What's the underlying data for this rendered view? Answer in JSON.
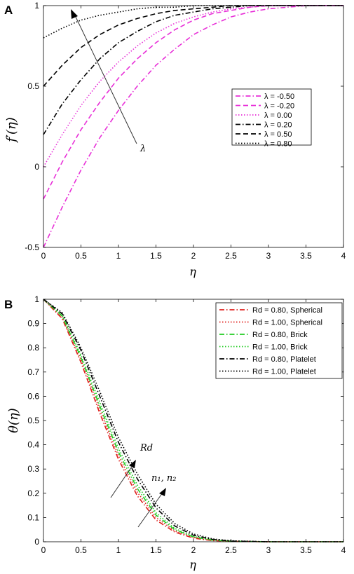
{
  "chart_data": [
    {
      "panel": "A",
      "type": "line",
      "xlabel": "η",
      "ylabel": "f′(η)",
      "xlim": [
        0,
        4
      ],
      "ylim": [
        -0.5,
        1
      ],
      "xticks": [
        "0",
        "0.5",
        "1",
        "1.5",
        "2",
        "2.5",
        "3",
        "3.5",
        "4"
      ],
      "yticks": [
        "-0.5",
        "0",
        "0.5",
        "1"
      ],
      "grid": false,
      "legend_position": "right",
      "annotation": "λ",
      "series": [
        {
          "name": "λ = -0.50",
          "color": "#e830d8",
          "dash": "dashdot",
          "x": [
            0,
            0.25,
            0.5,
            0.75,
            1,
            1.25,
            1.5,
            1.75,
            2,
            2.25,
            2.5,
            2.75,
            3,
            3.25,
            3.5,
            3.75,
            4
          ],
          "y": [
            -0.5,
            -0.25,
            -0.02,
            0.18,
            0.35,
            0.5,
            0.63,
            0.73,
            0.82,
            0.88,
            0.93,
            0.96,
            0.98,
            0.99,
            1.0,
            1.0,
            1.0
          ]
        },
        {
          "name": "λ = -0.20",
          "color": "#e830d8",
          "dash": "dashed",
          "x": [
            0,
            0.25,
            0.5,
            0.75,
            1,
            1.25,
            1.5,
            1.75,
            2,
            2.25,
            2.5,
            2.75,
            3,
            3.25,
            3.5,
            3.75,
            4
          ],
          "y": [
            -0.2,
            0.03,
            0.23,
            0.4,
            0.55,
            0.67,
            0.77,
            0.85,
            0.91,
            0.95,
            0.97,
            0.99,
            1.0,
            1.0,
            1.0,
            1.0,
            1.0
          ]
        },
        {
          "name": "λ = 0.00",
          "color": "#e830d8",
          "dash": "dotted",
          "x": [
            0,
            0.25,
            0.5,
            0.75,
            1,
            1.25,
            1.5,
            1.75,
            2,
            2.25,
            2.5,
            2.75,
            3,
            3.25,
            3.5,
            3.75,
            4
          ],
          "y": [
            0.0,
            0.2,
            0.38,
            0.53,
            0.65,
            0.75,
            0.83,
            0.89,
            0.93,
            0.96,
            0.98,
            0.99,
            1.0,
            1.0,
            1.0,
            1.0,
            1.0
          ]
        },
        {
          "name": "λ = 0.20",
          "color": "#000000",
          "dash": "dashdot",
          "x": [
            0,
            0.25,
            0.5,
            0.75,
            1,
            1.25,
            1.5,
            1.75,
            2,
            2.25,
            2.5,
            2.75,
            3,
            3.25,
            3.5,
            3.75,
            4
          ],
          "y": [
            0.2,
            0.39,
            0.54,
            0.67,
            0.77,
            0.84,
            0.9,
            0.94,
            0.96,
            0.98,
            0.99,
            1.0,
            1.0,
            1.0,
            1.0,
            1.0,
            1.0
          ]
        },
        {
          "name": "λ = 0.50",
          "color": "#000000",
          "dash": "dashed",
          "x": [
            0,
            0.25,
            0.5,
            0.75,
            1,
            1.25,
            1.5,
            1.75,
            2,
            2.25,
            2.5,
            2.75,
            3,
            3.25,
            3.5,
            3.75,
            4
          ],
          "y": [
            0.5,
            0.63,
            0.74,
            0.82,
            0.88,
            0.92,
            0.95,
            0.97,
            0.98,
            0.99,
            1.0,
            1.0,
            1.0,
            1.0,
            1.0,
            1.0,
            1.0
          ]
        },
        {
          "name": "λ = 0.80",
          "color": "#000000",
          "dash": "dotted",
          "x": [
            0,
            0.25,
            0.5,
            0.75,
            1,
            1.25,
            1.5,
            1.75,
            2,
            2.25,
            2.5,
            2.75,
            3,
            3.25,
            3.5,
            3.75,
            4
          ],
          "y": [
            0.8,
            0.86,
            0.91,
            0.94,
            0.96,
            0.98,
            0.99,
            0.99,
            1.0,
            1.0,
            1.0,
            1.0,
            1.0,
            1.0,
            1.0,
            1.0,
            1.0
          ]
        }
      ]
    },
    {
      "panel": "B",
      "type": "line",
      "xlabel": "η",
      "ylabel": "θ(η)",
      "xlim": [
        0,
        4
      ],
      "ylim": [
        0,
        1
      ],
      "xticks": [
        "0",
        "0.5",
        "1",
        "1.5",
        "2",
        "2.5",
        "3",
        "3.5",
        "4"
      ],
      "yticks": [
        "0",
        "0.1",
        "0.2",
        "0.3",
        "0.4",
        "0.5",
        "0.6",
        "0.7",
        "0.8",
        "0.9",
        "1"
      ],
      "grid": false,
      "legend_position": "top-right",
      "annotations": [
        "Rd",
        "n₁, n₂"
      ],
      "series": [
        {
          "name": "Rd = 0.80, Spherical",
          "color": "#e0201c",
          "dash": "dashdot",
          "x": [
            0,
            0.25,
            0.5,
            0.75,
            1,
            1.25,
            1.5,
            1.75,
            2,
            2.25,
            2.5,
            3,
            3.5,
            4
          ],
          "y": [
            1.0,
            0.92,
            0.74,
            0.53,
            0.34,
            0.19,
            0.09,
            0.04,
            0.015,
            0.005,
            0.002,
            0,
            0,
            0
          ]
        },
        {
          "name": "Rd = 1.00, Spherical",
          "color": "#e0201c",
          "dash": "dotted",
          "x": [
            0,
            0.25,
            0.5,
            0.75,
            1,
            1.25,
            1.5,
            1.75,
            2,
            2.25,
            2.5,
            3,
            3.5,
            4
          ],
          "y": [
            1.0,
            0.925,
            0.75,
            0.545,
            0.355,
            0.205,
            0.1,
            0.045,
            0.018,
            0.006,
            0.002,
            0,
            0,
            0
          ]
        },
        {
          "name": "Rd = 0.80, Brick",
          "color": "#22cc22",
          "dash": "dashdot",
          "x": [
            0,
            0.25,
            0.5,
            0.75,
            1,
            1.25,
            1.5,
            1.75,
            2,
            2.25,
            2.5,
            3,
            3.5,
            4
          ],
          "y": [
            1.0,
            0.93,
            0.76,
            0.56,
            0.37,
            0.22,
            0.11,
            0.05,
            0.02,
            0.007,
            0.002,
            0,
            0,
            0
          ]
        },
        {
          "name": "Rd = 1.00, Brick",
          "color": "#22cc22",
          "dash": "dotted",
          "x": [
            0,
            0.25,
            0.5,
            0.75,
            1,
            1.25,
            1.5,
            1.75,
            2,
            2.25,
            2.5,
            3,
            3.5,
            4
          ],
          "y": [
            1.0,
            0.935,
            0.77,
            0.575,
            0.385,
            0.235,
            0.12,
            0.055,
            0.022,
            0.008,
            0.003,
            0,
            0,
            0
          ]
        },
        {
          "name": "Rd = 0.80, Platelet",
          "color": "#000000",
          "dash": "dashdot",
          "x": [
            0,
            0.25,
            0.5,
            0.75,
            1,
            1.25,
            1.5,
            1.75,
            2,
            2.25,
            2.5,
            3,
            3.5,
            4
          ],
          "y": [
            1.0,
            0.94,
            0.79,
            0.6,
            0.41,
            0.26,
            0.14,
            0.065,
            0.027,
            0.01,
            0.003,
            0,
            0,
            0
          ]
        },
        {
          "name": "Rd = 1.00, Platelet",
          "color": "#000000",
          "dash": "dotted",
          "x": [
            0,
            0.25,
            0.5,
            0.75,
            1,
            1.25,
            1.5,
            1.75,
            2,
            2.25,
            2.5,
            3,
            3.5,
            4
          ],
          "y": [
            1.0,
            0.945,
            0.8,
            0.62,
            0.43,
            0.28,
            0.155,
            0.075,
            0.032,
            0.012,
            0.004,
            0,
            0,
            0
          ]
        }
      ]
    }
  ]
}
